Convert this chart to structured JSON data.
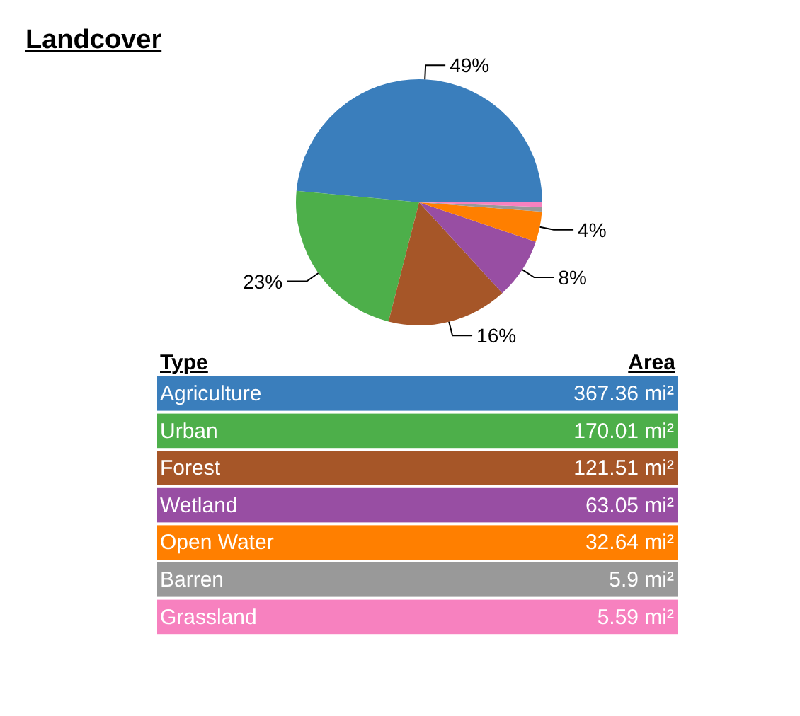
{
  "chart_data": [
    {
      "type": "pie",
      "title": "Landcover",
      "categories": [
        null,
        null,
        null,
        null,
        null,
        null,
        null
      ],
      "values": [
        48.5,
        22.5,
        15.8,
        8.0,
        4.0,
        0.6,
        0.6
      ],
      "colors": [
        "#3a7ebc",
        "#4daf4a",
        "#a65628",
        "#984ea3",
        "#ff7f00",
        "#999999",
        "#f781bf"
      ],
      "value_labels": [
        "49%",
        "23%",
        "16%",
        "8%",
        "4%",
        null,
        null
      ]
    },
    {
      "type": "other",
      "xlabel": "Type",
      "ylabel": "Area",
      "categories": [
        "Agriculture",
        "Urban",
        "Forest",
        "Wetland",
        "Open Water",
        "Barren",
        "Grassland"
      ],
      "values": [
        367.36,
        170.01,
        121.51,
        63.05,
        32.64,
        5.9,
        5.59
      ],
      "colors": [
        "#3a7ebc",
        "#4daf4a",
        "#a65628",
        "#984ea3",
        "#ff7f00",
        "#999999",
        "#f781bf"
      ],
      "value_labels": [
        "367.36 mi²",
        "170.01 mi²",
        "121.51 mi²",
        "63.05 mi²",
        "32.64 mi²",
        "5.9 mi²",
        "5.59 mi²"
      ]
    }
  ]
}
